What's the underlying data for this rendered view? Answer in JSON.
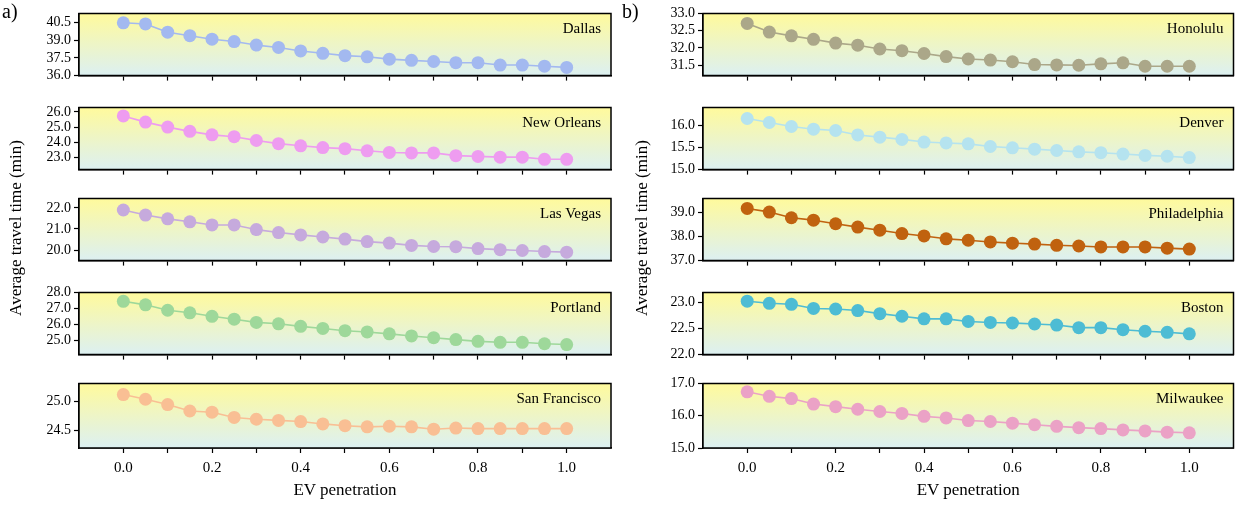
{
  "chart_data": [
    {
      "type": "line",
      "title": "Dallas",
      "annotations": [
        "a)"
      ],
      "x": [
        0,
        0.05,
        0.1,
        0.15,
        0.2,
        0.25,
        0.3,
        0.35,
        0.4,
        0.45,
        0.5,
        0.55,
        0.6,
        0.65,
        0.7,
        0.75,
        0.8,
        0.85,
        0.9,
        0.95,
        1
      ],
      "series": [
        {
          "color": "#a3b9f0",
          "values": [
            40.5,
            40.4,
            39.7,
            39.4,
            39.1,
            38.9,
            38.6,
            38.4,
            38.1,
            37.9,
            37.7,
            37.6,
            37.4,
            37.3,
            37.2,
            37.1,
            37.1,
            36.9,
            36.9,
            36.8,
            36.7
          ]
        }
      ],
      "xlim": [
        -0.1,
        1.1
      ],
      "xticks": [
        0,
        0.1,
        0.2,
        0.3,
        0.4,
        0.5,
        0.6,
        0.7,
        0.8,
        0.9,
        1
      ],
      "ylim": [
        36,
        41.3
      ],
      "yticks": [
        {
          "value": 36,
          "label": "36.0"
        },
        37.5,
        {
          "value": 39,
          "label": "39.0"
        },
        40.5
      ],
      "marker": "circle",
      "tick_labels": "y"
    },
    {
      "type": "line",
      "title": "New Orleans",
      "x": [
        0,
        0.05,
        0.1,
        0.15,
        0.2,
        0.25,
        0.3,
        0.35,
        0.4,
        0.45,
        0.5,
        0.55,
        0.6,
        0.65,
        0.7,
        0.75,
        0.8,
        0.85,
        0.9,
        0.95,
        1
      ],
      "series": [
        {
          "color": "#ee9cf0",
          "values": [
            25.74,
            25.33,
            25.0,
            24.72,
            24.49,
            24.37,
            24.12,
            23.91,
            23.77,
            23.65,
            23.58,
            23.44,
            23.33,
            23.3,
            23.3,
            23.12,
            23.07,
            23.02,
            23.02,
            22.88,
            22.88
          ]
        }
      ],
      "xlim": [
        -0.1,
        1.1
      ],
      "xticks": [
        0,
        0.1,
        0.2,
        0.3,
        0.4,
        0.5,
        0.6,
        0.7,
        0.8,
        0.9,
        1
      ],
      "ylim": [
        22.2,
        26.3
      ],
      "yticks": [
        {
          "value": 23,
          "label": "23.0"
        },
        {
          "value": 24,
          "label": "24.0"
        },
        {
          "value": 25,
          "label": "25.0"
        },
        {
          "value": 26,
          "label": "26.0"
        }
      ],
      "marker": "circle",
      "tick_labels": "y"
    },
    {
      "type": "line",
      "title": "Las Vegas",
      "ylabel": "Average travel time (min)",
      "x": [
        0,
        0.05,
        0.1,
        0.15,
        0.2,
        0.25,
        0.3,
        0.35,
        0.4,
        0.45,
        0.5,
        0.55,
        0.6,
        0.65,
        0.7,
        0.75,
        0.8,
        0.85,
        0.9,
        0.95,
        1
      ],
      "series": [
        {
          "color": "#c6aadd",
          "values": [
            21.9,
            21.66,
            21.48,
            21.34,
            21.19,
            21.19,
            20.97,
            20.83,
            20.72,
            20.62,
            20.52,
            20.4,
            20.33,
            20.22,
            20.17,
            20.16,
            20.07,
            20.02,
            19.98,
            19.93,
            19.9
          ]
        }
      ],
      "xlim": [
        -0.1,
        1.1
      ],
      "xticks": [
        0,
        0.1,
        0.2,
        0.3,
        0.4,
        0.5,
        0.6,
        0.7,
        0.8,
        0.9,
        1
      ],
      "ylim": [
        19.5,
        22.45
      ],
      "yticks": [
        {
          "value": 20,
          "label": "20.0"
        },
        {
          "value": 21,
          "label": "21.0"
        },
        {
          "value": 22,
          "label": "22.0"
        }
      ],
      "marker": "circle",
      "tick_labels": "y"
    },
    {
      "type": "line",
      "title": "Portland",
      "x": [
        0,
        0.05,
        0.1,
        0.15,
        0.2,
        0.25,
        0.3,
        0.35,
        0.4,
        0.45,
        0.5,
        0.55,
        0.6,
        0.65,
        0.7,
        0.75,
        0.8,
        0.85,
        0.9,
        0.95,
        1
      ],
      "series": [
        {
          "color": "#9ed89a",
          "values": [
            27.44,
            27.22,
            26.88,
            26.72,
            26.5,
            26.32,
            26.12,
            26.03,
            25.87,
            25.74,
            25.6,
            25.52,
            25.4,
            25.27,
            25.16,
            25.04,
            24.93,
            24.87,
            24.87,
            24.78,
            24.73
          ]
        }
      ],
      "xlim": [
        -0.1,
        1.1
      ],
      "xticks": [
        0,
        0.1,
        0.2,
        0.3,
        0.4,
        0.5,
        0.6,
        0.7,
        0.8,
        0.9,
        1
      ],
      "ylim": [
        24.1,
        28
      ],
      "yticks": [
        {
          "value": 25,
          "label": "25.0"
        },
        {
          "value": 26,
          "label": "26.0"
        },
        {
          "value": 27,
          "label": "27.0"
        },
        {
          "value": 28,
          "label": "28.0"
        }
      ],
      "marker": "circle",
      "tick_labels": "y"
    },
    {
      "type": "line",
      "title": "San Francisco",
      "xlabel": "EV penetration",
      "x": [
        0,
        0.05,
        0.1,
        0.15,
        0.2,
        0.25,
        0.3,
        0.35,
        0.4,
        0.45,
        0.5,
        0.55,
        0.6,
        0.65,
        0.7,
        0.75,
        0.8,
        0.85,
        0.9,
        0.95,
        1
      ],
      "series": [
        {
          "color": "#f9bf94",
          "values": [
            25.11,
            25.03,
            24.94,
            24.83,
            24.81,
            24.72,
            24.69,
            24.67,
            24.65,
            24.61,
            24.58,
            24.56,
            24.57,
            24.56,
            24.52,
            24.54,
            24.53,
            24.53,
            24.53,
            24.53,
            24.53
          ]
        }
      ],
      "xlim": [
        -0.1,
        1.1
      ],
      "xticks": [
        {
          "value": 0,
          "label": "0.0"
        },
        {
          "value": 0.1,
          "label": null
        },
        0.2,
        {
          "value": 0.3,
          "label": null
        },
        0.4,
        {
          "value": 0.5,
          "label": null
        },
        0.6,
        {
          "value": 0.7,
          "label": null
        },
        0.8,
        {
          "value": 0.9,
          "label": null
        },
        {
          "value": 1,
          "label": "1.0"
        }
      ],
      "ylim": [
        24.2,
        25.3
      ],
      "yticks": [
        24.5,
        {
          "value": 25,
          "label": "25.0"
        }
      ],
      "marker": "circle"
    },
    {
      "type": "line",
      "title": "Honolulu",
      "annotations": [
        "b)"
      ],
      "x": [
        0,
        0.05,
        0.1,
        0.15,
        0.2,
        0.25,
        0.3,
        0.35,
        0.4,
        0.45,
        0.5,
        0.55,
        0.6,
        0.65,
        0.7,
        0.75,
        0.8,
        0.85,
        0.9,
        0.95,
        1
      ],
      "series": [
        {
          "color": "#aba789",
          "values": [
            32.71,
            32.46,
            32.35,
            32.25,
            32.14,
            32.08,
            31.97,
            31.92,
            31.84,
            31.75,
            31.68,
            31.65,
            31.6,
            31.52,
            31.51,
            31.5,
            31.54,
            31.57,
            31.47,
            31.47,
            31.47
          ]
        }
      ],
      "xlim": [
        -0.1,
        1.1
      ],
      "xticks": [
        0,
        0.1,
        0.2,
        0.3,
        0.4,
        0.5,
        0.6,
        0.7,
        0.8,
        0.9,
        1
      ],
      "ylim": [
        31.2,
        33
      ],
      "yticks": [
        31.5,
        {
          "value": 32,
          "label": "32.0"
        },
        32.5,
        {
          "value": 33,
          "label": "33.0"
        }
      ],
      "marker": "circle",
      "tick_labels": "y"
    },
    {
      "type": "line",
      "title": "Denver",
      "x": [
        0,
        0.05,
        0.1,
        0.15,
        0.2,
        0.25,
        0.3,
        0.35,
        0.4,
        0.45,
        0.5,
        0.55,
        0.6,
        0.65,
        0.7,
        0.75,
        0.8,
        0.85,
        0.9,
        0.95,
        1
      ],
      "series": [
        {
          "color": "#b5e3ef",
          "values": [
            16.15,
            16.06,
            15.97,
            15.91,
            15.88,
            15.78,
            15.73,
            15.68,
            15.62,
            15.6,
            15.58,
            15.52,
            15.49,
            15.46,
            15.43,
            15.4,
            15.38,
            15.35,
            15.32,
            15.3,
            15.27
          ]
        }
      ],
      "xlim": [
        -0.1,
        1.1
      ],
      "xticks": [
        0,
        0.1,
        0.2,
        0.3,
        0.4,
        0.5,
        0.6,
        0.7,
        0.8,
        0.9,
        1
      ],
      "ylim": [
        15,
        16.4
      ],
      "yticks": [
        {
          "value": 15,
          "label": "15.0"
        },
        15.5,
        {
          "value": 16,
          "label": "16.0"
        }
      ],
      "marker": "circle",
      "tick_labels": "y"
    },
    {
      "type": "line",
      "title": "Philadelphia",
      "ylabel": "Average travel time (min)",
      "x": [
        0,
        0.05,
        0.1,
        0.15,
        0.2,
        0.25,
        0.3,
        0.35,
        0.4,
        0.45,
        0.5,
        0.55,
        0.6,
        0.65,
        0.7,
        0.75,
        0.8,
        0.85,
        0.9,
        0.95,
        1
      ],
      "series": [
        {
          "color": "#c0620f",
          "values": [
            39.18,
            39.03,
            38.79,
            38.69,
            38.54,
            38.4,
            38.27,
            38.13,
            38.03,
            37.91,
            37.85,
            37.78,
            37.73,
            37.69,
            37.64,
            37.61,
            37.57,
            37.57,
            37.57,
            37.52,
            37.48
          ]
        }
      ],
      "xlim": [
        -0.1,
        1.1
      ],
      "xticks": [
        0,
        0.1,
        0.2,
        0.3,
        0.4,
        0.5,
        0.6,
        0.7,
        0.8,
        0.9,
        1
      ],
      "ylim": [
        37,
        39.6
      ],
      "yticks": [
        {
          "value": 37,
          "label": "37.0"
        },
        {
          "value": 38,
          "label": "38.0"
        },
        {
          "value": 39,
          "label": "39.0"
        }
      ],
      "marker": "circle",
      "tick_labels": "y"
    },
    {
      "type": "line",
      "title": "Boston",
      "x": [
        0,
        0.05,
        0.1,
        0.15,
        0.2,
        0.25,
        0.3,
        0.35,
        0.4,
        0.45,
        0.5,
        0.55,
        0.6,
        0.65,
        0.7,
        0.75,
        0.8,
        0.85,
        0.9,
        0.95,
        1
      ],
      "series": [
        {
          "color": "#4dbcd4",
          "values": [
            23.03,
            22.99,
            22.97,
            22.89,
            22.88,
            22.85,
            22.79,
            22.74,
            22.69,
            22.69,
            22.64,
            22.62,
            22.61,
            22.59,
            22.57,
            22.52,
            22.52,
            22.48,
            22.45,
            22.43,
            22.4
          ]
        }
      ],
      "xlim": [
        -0.1,
        1.1
      ],
      "xticks": [
        0,
        0.1,
        0.2,
        0.3,
        0.4,
        0.5,
        0.6,
        0.7,
        0.8,
        0.9,
        1
      ],
      "ylim": [
        22,
        23.2
      ],
      "yticks": [
        {
          "value": 22,
          "label": "22.0"
        },
        22.5,
        {
          "value": 23,
          "label": "23.0"
        }
      ],
      "marker": "circle",
      "tick_labels": "y"
    },
    {
      "type": "line",
      "title": "Milwaukee",
      "xlabel": "EV penetration",
      "x": [
        0,
        0.05,
        0.1,
        0.15,
        0.2,
        0.25,
        0.3,
        0.35,
        0.4,
        0.45,
        0.5,
        0.55,
        0.6,
        0.65,
        0.7,
        0.75,
        0.8,
        0.85,
        0.9,
        0.95,
        1
      ],
      "series": [
        {
          "color": "#eba2c6",
          "values": [
            16.74,
            16.6,
            16.53,
            16.36,
            16.28,
            16.2,
            16.13,
            16.07,
            15.98,
            15.93,
            15.85,
            15.82,
            15.77,
            15.72,
            15.67,
            15.63,
            15.6,
            15.56,
            15.53,
            15.49,
            15.47
          ]
        }
      ],
      "xlim": [
        -0.1,
        1.1
      ],
      "xticks": [
        {
          "value": 0,
          "label": "0.0"
        },
        {
          "value": 0.1,
          "label": null
        },
        0.2,
        {
          "value": 0.3,
          "label": null
        },
        0.4,
        {
          "value": 0.5,
          "label": null
        },
        0.6,
        {
          "value": 0.7,
          "label": null
        },
        0.8,
        {
          "value": 0.9,
          "label": null
        },
        {
          "value": 1,
          "label": "1.0"
        }
      ],
      "ylim": [
        15,
        17
      ],
      "yticks": [
        {
          "value": 15,
          "label": "15.0"
        },
        {
          "value": 16,
          "label": "16.0"
        },
        {
          "value": 17,
          "label": "17.0"
        }
      ],
      "marker": "circle"
    }
  ]
}
